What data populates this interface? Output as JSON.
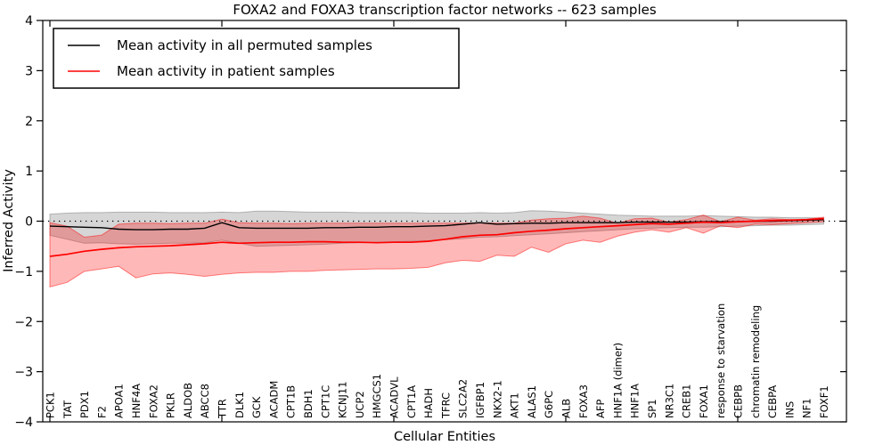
{
  "figure": {
    "background": "#ffffff"
  },
  "chart_data": {
    "type": "line",
    "title": "FOXA2 and FOXA3 transcription factor networks -- 623 samples",
    "xlabel": "Cellular Entities",
    "ylabel": "Inferred Activity",
    "ylim": [
      -4,
      4
    ],
    "yticks": [
      4,
      3,
      2,
      1,
      0,
      -1,
      -2,
      -3,
      -4
    ],
    "x_major_tick_indices": [
      0,
      10,
      20,
      30,
      40
    ],
    "grid": false,
    "zero_line": {
      "y": 0,
      "style": "dotted",
      "color": "#000000"
    },
    "legend": {
      "position": "upper left",
      "entries": [
        {
          "label": "Mean activity in all permuted samples",
          "color": "#000000"
        },
        {
          "label": "Mean activity in patient samples",
          "color": "#ff0000"
        }
      ]
    },
    "categories": [
      "PCK1",
      "TAT",
      "PDX1",
      "F2",
      "APOA1",
      "HNF4A",
      "FOXA2",
      "PKLR",
      "ALDOB",
      "ABCC8",
      "TTR",
      "DLK1",
      "GCK",
      "ACADM",
      "CPT1B",
      "BDH1",
      "CPT1C",
      "KCNJ11",
      "UCP2",
      "HMGCS1",
      "ACADVL",
      "CPT1A",
      "HADH",
      "TFRC",
      "SLC2A2",
      "IGFBP1",
      "NKX2-1",
      "AKT1",
      "ALAS1",
      "G6PC",
      "ALB",
      "FOXA3",
      "AFP",
      "HNF1A (dimer)",
      "HNF1A",
      "SP1",
      "NR3C1",
      "CREB1",
      "FOXA1",
      "response to starvation",
      "CEBPB",
      "chromatin remodeling",
      "CEBPA",
      "INS",
      "NF1",
      "FOXF1"
    ],
    "series": [
      {
        "name": "Mean activity in all permuted samples",
        "color": "#000000",
        "linewidth": 1.4,
        "values": [
          -0.1,
          -0.11,
          -0.12,
          -0.13,
          -0.16,
          -0.17,
          -0.17,
          -0.16,
          -0.16,
          -0.14,
          -0.03,
          -0.13,
          -0.14,
          -0.14,
          -0.14,
          -0.14,
          -0.13,
          -0.13,
          -0.12,
          -0.12,
          -0.11,
          -0.11,
          -0.1,
          -0.09,
          -0.06,
          -0.03,
          -0.06,
          -0.05,
          -0.04,
          -0.04,
          -0.03,
          -0.03,
          -0.03,
          -0.03,
          -0.02,
          -0.02,
          -0.02,
          -0.02,
          -0.01,
          -0.01,
          -0.01,
          0.0,
          0.0,
          0.01,
          0.02,
          0.03
        ]
      },
      {
        "name": "Mean activity in patient samples",
        "color": "#ff0000",
        "linewidth": 1.7,
        "values": [
          -0.7,
          -0.66,
          -0.6,
          -0.56,
          -0.53,
          -0.51,
          -0.5,
          -0.49,
          -0.47,
          -0.45,
          -0.42,
          -0.44,
          -0.43,
          -0.42,
          -0.42,
          -0.41,
          -0.41,
          -0.42,
          -0.42,
          -0.43,
          -0.42,
          -0.42,
          -0.4,
          -0.36,
          -0.31,
          -0.28,
          -0.27,
          -0.23,
          -0.2,
          -0.18,
          -0.15,
          -0.13,
          -0.11,
          -0.09,
          -0.07,
          -0.05,
          -0.06,
          -0.04,
          -0.02,
          -0.03,
          -0.01,
          0.0,
          0.01,
          0.02,
          0.03,
          0.05
        ]
      }
    ],
    "bands": [
      {
        "name": "permuted-std-band",
        "color": "#808080",
        "opacity": 0.32,
        "upper": [
          0.14,
          0.16,
          0.17,
          0.17,
          0.18,
          0.18,
          0.18,
          0.17,
          0.17,
          0.17,
          0.18,
          0.17,
          0.2,
          0.2,
          0.19,
          0.18,
          0.18,
          0.18,
          0.17,
          0.17,
          0.17,
          0.17,
          0.16,
          0.16,
          0.16,
          0.17,
          0.16,
          0.17,
          0.21,
          0.2,
          0.18,
          0.16,
          0.14,
          0.12,
          0.11,
          0.1,
          0.1,
          0.1,
          0.11,
          0.1,
          0.09,
          0.08,
          0.08,
          0.07,
          0.07,
          0.06
        ],
        "lower": [
          -0.28,
          -0.36,
          -0.44,
          -0.43,
          -0.45,
          -0.46,
          -0.45,
          -0.44,
          -0.44,
          -0.43,
          -0.38,
          -0.44,
          -0.5,
          -0.49,
          -0.48,
          -0.47,
          -0.46,
          -0.44,
          -0.43,
          -0.42,
          -0.41,
          -0.4,
          -0.39,
          -0.37,
          -0.35,
          -0.32,
          -0.31,
          -0.29,
          -0.27,
          -0.25,
          -0.23,
          -0.21,
          -0.19,
          -0.17,
          -0.15,
          -0.14,
          -0.13,
          -0.12,
          -0.12,
          -0.11,
          -0.1,
          -0.09,
          -0.08,
          -0.08,
          -0.07,
          -0.06
        ]
      },
      {
        "name": "patient-std-band",
        "color": "#ff0000",
        "opacity": 0.28,
        "upper": [
          -0.03,
          -0.1,
          -0.32,
          -0.28,
          -0.06,
          -0.04,
          -0.04,
          -0.05,
          -0.04,
          -0.04,
          0.04,
          -0.03,
          -0.04,
          -0.04,
          -0.05,
          -0.04,
          -0.04,
          -0.04,
          -0.04,
          -0.04,
          -0.04,
          -0.04,
          -0.04,
          -0.04,
          -0.04,
          -0.03,
          -0.04,
          -0.04,
          0.02,
          0.05,
          0.06,
          0.1,
          0.06,
          -0.04,
          0.05,
          0.06,
          -0.02,
          0.03,
          0.12,
          -0.01,
          0.08,
          0.02,
          0.05,
          0.03,
          0.04,
          0.08
        ],
        "lower": [
          -1.31,
          -1.22,
          -1.0,
          -0.95,
          -0.9,
          -1.13,
          -1.05,
          -1.03,
          -1.06,
          -1.1,
          -1.06,
          -1.03,
          -1.02,
          -1.02,
          -1.0,
          -1.0,
          -0.98,
          -0.97,
          -0.96,
          -0.95,
          -0.95,
          -0.94,
          -0.92,
          -0.83,
          -0.78,
          -0.8,
          -0.68,
          -0.7,
          -0.52,
          -0.62,
          -0.45,
          -0.38,
          -0.42,
          -0.3,
          -0.22,
          -0.17,
          -0.22,
          -0.13,
          -0.24,
          -0.09,
          -0.13,
          -0.06,
          -0.07,
          -0.05,
          -0.03,
          -0.01
        ]
      }
    ]
  }
}
